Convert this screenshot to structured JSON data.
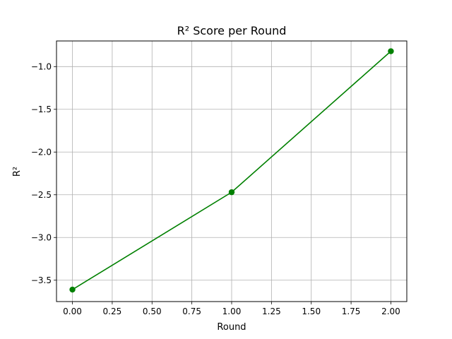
{
  "chart_data": {
    "type": "line",
    "title": "R² Score per Round",
    "xlabel": "Round",
    "ylabel": "R²",
    "xlim": [
      -0.1,
      2.1
    ],
    "ylim": [
      -3.75,
      -0.7
    ],
    "xticks": [
      0.0,
      0.25,
      0.5,
      0.75,
      1.0,
      1.25,
      1.5,
      1.75,
      2.0
    ],
    "xtick_labels": [
      "0.00",
      "0.25",
      "0.50",
      "0.75",
      "1.00",
      "1.25",
      "1.50",
      "1.75",
      "2.00"
    ],
    "yticks": [
      -3.5,
      -3.0,
      -2.5,
      -2.0,
      -1.5,
      -1.0
    ],
    "ytick_labels": [
      "−3.5",
      "−3.0",
      "−2.5",
      "−2.0",
      "−1.5",
      "−1.0"
    ],
    "grid": true,
    "series": [
      {
        "x": [
          0,
          1,
          2
        ],
        "y": [
          -3.61,
          -2.47,
          -0.82
        ],
        "color": "#008000",
        "marker": "circle"
      }
    ]
  }
}
